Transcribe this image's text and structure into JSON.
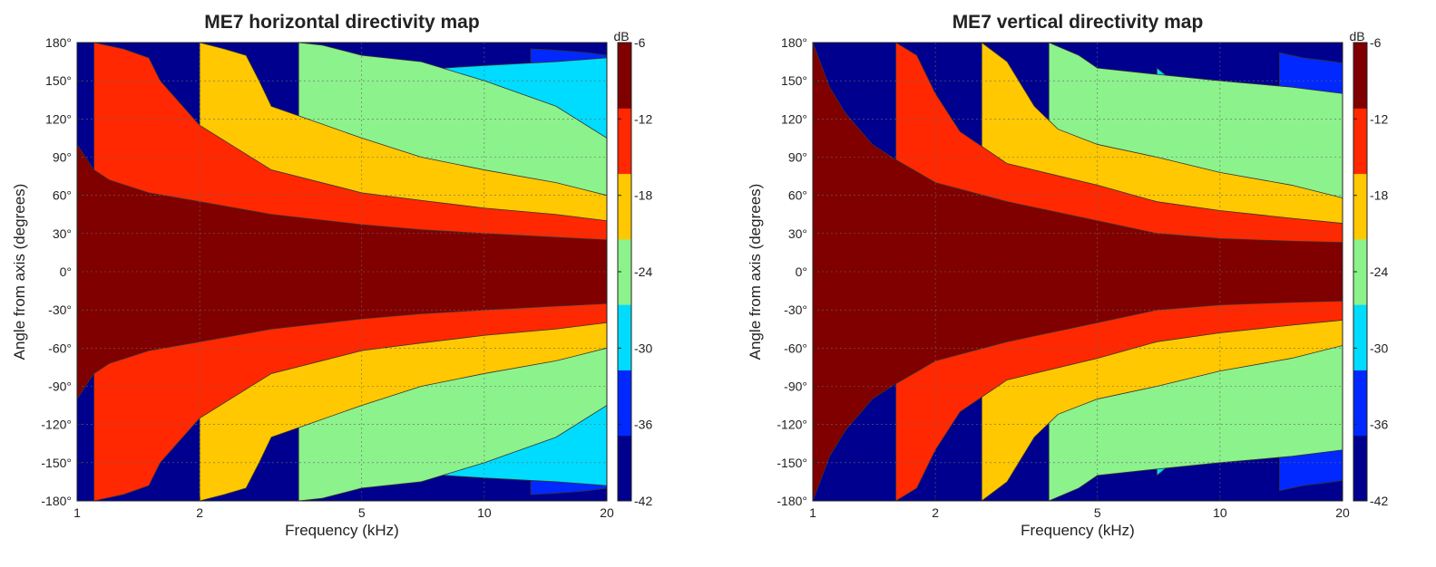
{
  "colors": {
    "levels": [
      "#00008f",
      "#0028ff",
      "#00dcff",
      "#8cf28c",
      "#ffc800",
      "#ff2800",
      "#800000"
    ]
  },
  "chart_data": [
    {
      "type": "heatmap",
      "title": "ME7 horizontal directivity map",
      "xlabel": "Frequency (kHz)",
      "ylabel": "Angle from axis (degrees)",
      "xscale": "log",
      "xlim": [
        1,
        20
      ],
      "ylim": [
        -180,
        180
      ],
      "grid": true,
      "x_ticks": [
        {
          "value": 1,
          "label": "1"
        },
        {
          "value": 2,
          "label": "2"
        },
        {
          "value": 5,
          "label": "5"
        },
        {
          "value": 10,
          "label": "10"
        },
        {
          "value": 20,
          "label": "20"
        }
      ],
      "y_ticks": [
        {
          "value": 180,
          "label": "180°"
        },
        {
          "value": 150,
          "label": "150°"
        },
        {
          "value": 120,
          "label": "120°"
        },
        {
          "value": 90,
          "label": "90°"
        },
        {
          "value": 60,
          "label": "60°"
        },
        {
          "value": 30,
          "label": "30°"
        },
        {
          "value": 0,
          "label": "0°"
        },
        {
          "value": -30,
          "label": "-30°"
        },
        {
          "value": -60,
          "label": "-60°"
        },
        {
          "value": -90,
          "label": "-90°"
        },
        {
          "value": -120,
          "label": "-120°"
        },
        {
          "value": -150,
          "label": "-150°"
        },
        {
          "value": -180,
          "label": "-180°"
        }
      ],
      "colorbar": {
        "label": "dB",
        "min": -42,
        "max": -6,
        "ticks": [
          "-6",
          "-12",
          "-18",
          "-24",
          "-30",
          "-36",
          "-42"
        ]
      },
      "levels_db": [
        -36,
        -30,
        -24,
        -18,
        -12,
        -6
      ],
      "contours": [
        {
          "level_db": -6,
          "freq_khz": [
            1,
            1.1,
            1.2,
            1.5,
            2,
            3,
            5,
            7,
            10,
            15,
            20
          ],
          "angle_deg": [
            100,
            80,
            72,
            62,
            55,
            45,
            37,
            33,
            30,
            27,
            25
          ]
        },
        {
          "level_db": -12,
          "freq_khz": [
            1.1,
            1.3,
            1.5,
            1.6,
            2,
            3,
            5,
            7,
            10,
            15,
            20
          ],
          "angle_deg": [
            180,
            175,
            168,
            150,
            115,
            80,
            62,
            56,
            50,
            45,
            40
          ]
        },
        {
          "level_db": -18,
          "freq_khz": [
            2,
            2.3,
            2.6,
            2.8,
            3,
            5,
            7,
            10,
            15,
            20
          ],
          "angle_deg": [
            180,
            175,
            170,
            150,
            130,
            105,
            90,
            80,
            70,
            60
          ]
        },
        {
          "level_db": -24,
          "freq_khz": [
            3.5,
            4,
            5,
            7,
            10,
            15,
            20
          ],
          "angle_deg": [
            180,
            178,
            170,
            165,
            150,
            130,
            105
          ]
        },
        {
          "level_db": -30,
          "freq_khz": [
            6.5,
            8,
            10,
            15,
            20
          ],
          "angle_deg": [
            155,
            160,
            162,
            165,
            168
          ]
        },
        {
          "level_db": -36,
          "freq_khz": [
            13,
            15,
            18,
            20
          ],
          "angle_deg": [
            175,
            174,
            172,
            170
          ]
        }
      ]
    },
    {
      "type": "heatmap",
      "title": "ME7 vertical directivity map",
      "xlabel": "Frequency (kHz)",
      "ylabel": "Angle from axis (degrees)",
      "xscale": "log",
      "xlim": [
        1,
        20
      ],
      "ylim": [
        -180,
        180
      ],
      "grid": true,
      "x_ticks": [
        {
          "value": 1,
          "label": "1"
        },
        {
          "value": 2,
          "label": "2"
        },
        {
          "value": 5,
          "label": "5"
        },
        {
          "value": 10,
          "label": "10"
        },
        {
          "value": 20,
          "label": "20"
        }
      ],
      "y_ticks": [
        {
          "value": 180,
          "label": "180°"
        },
        {
          "value": 150,
          "label": "150°"
        },
        {
          "value": 120,
          "label": "120°"
        },
        {
          "value": 90,
          "label": "90°"
        },
        {
          "value": 60,
          "label": "60°"
        },
        {
          "value": 30,
          "label": "30°"
        },
        {
          "value": 0,
          "label": "0°"
        },
        {
          "value": -30,
          "label": "-30°"
        },
        {
          "value": -60,
          "label": "-60°"
        },
        {
          "value": -90,
          "label": "-90°"
        },
        {
          "value": -120,
          "label": "-120°"
        },
        {
          "value": -150,
          "label": "-150°"
        },
        {
          "value": -180,
          "label": "-180°"
        }
      ],
      "colorbar": {
        "label": "dB",
        "min": -42,
        "max": -6,
        "ticks": [
          "-6",
          "-12",
          "-18",
          "-24",
          "-30",
          "-36",
          "-42"
        ]
      },
      "levels_db": [
        -36,
        -30,
        -24,
        -18,
        -12,
        -6
      ],
      "contours": [
        {
          "level_db": -6,
          "freq_khz": [
            1,
            1.1,
            1.2,
            1.4,
            1.6,
            2,
            3,
            5,
            7,
            10,
            15,
            20
          ],
          "angle_deg": [
            180,
            145,
            125,
            100,
            88,
            70,
            55,
            40,
            30,
            26,
            24,
            23
          ]
        },
        {
          "level_db": -12,
          "freq_khz": [
            1.6,
            1.8,
            2,
            2.3,
            3,
            5,
            7,
            10,
            15,
            20
          ],
          "angle_deg": [
            180,
            170,
            140,
            110,
            85,
            68,
            55,
            48,
            42,
            38
          ]
        },
        {
          "level_db": -18,
          "freq_khz": [
            2.6,
            3,
            3.5,
            4,
            5,
            7,
            10,
            15,
            20
          ],
          "angle_deg": [
            180,
            165,
            130,
            112,
            100,
            90,
            78,
            68,
            58
          ]
        },
        {
          "level_db": -24,
          "freq_khz": [
            3.8,
            4.5,
            5,
            7,
            10,
            15,
            20
          ],
          "angle_deg": [
            180,
            170,
            160,
            155,
            150,
            145,
            140
          ]
        },
        {
          "level_db": -30,
          "freq_khz": [
            7,
            8,
            10,
            15,
            20
          ],
          "angle_deg": [
            160,
            145,
            130,
            120,
            125
          ]
        },
        {
          "level_db": -36,
          "freq_khz": [
            14,
            16,
            18,
            20
          ],
          "angle_deg": [
            172,
            168,
            166,
            164
          ]
        }
      ]
    }
  ]
}
